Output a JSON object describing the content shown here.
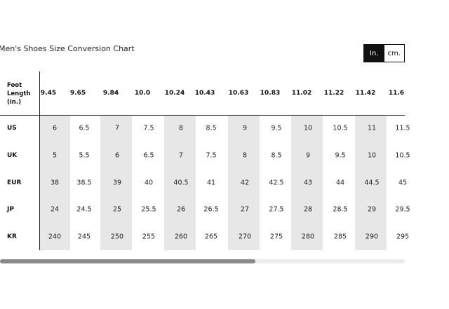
{
  "title": "Men's Shoes Size Conversion Chart",
  "unit_toggle": {
    "inch_label": "In.",
    "cm_label": "cm.",
    "selected": "In."
  },
  "table": {
    "foot_length_label": [
      "Foot",
      "Length",
      "(in.)"
    ],
    "foot_lengths": [
      "9.45",
      "9.65",
      "9.84",
      "10.0",
      "10.24",
      "10.43",
      "10.63",
      "10.83",
      "11.02",
      "11.22",
      "11.42",
      "11.6"
    ],
    "rows": [
      {
        "label": "US",
        "values": [
          "6",
          "6.5",
          "7",
          "7.5",
          "8",
          "8.5",
          "9",
          "9.5",
          "10",
          "10.5",
          "11",
          "11.5"
        ]
      },
      {
        "label": "UK",
        "values": [
          "5",
          "5.5",
          "6",
          "6.5",
          "7",
          "7.5",
          "8",
          "8.5",
          "9",
          "9.5",
          "10",
          "10.5"
        ]
      },
      {
        "label": "EUR",
        "values": [
          "38",
          "38.5",
          "39",
          "40",
          "40.5",
          "41",
          "42",
          "42.5",
          "43",
          "44",
          "44.5",
          "45"
        ]
      },
      {
        "label": "JP",
        "values": [
          "24",
          "24.5",
          "25",
          "25.5",
          "26",
          "26.5",
          "27",
          "27.5",
          "28",
          "28.5",
          "29",
          "29.5"
        ]
      },
      {
        "label": "KR",
        "values": [
          "240",
          "245",
          "250",
          "255",
          "260",
          "265",
          "270",
          "275",
          "280",
          "285",
          "290",
          "295"
        ]
      }
    ]
  },
  "scroll": {
    "thumb_fraction": 0.63,
    "position_fraction": 0.0
  }
}
